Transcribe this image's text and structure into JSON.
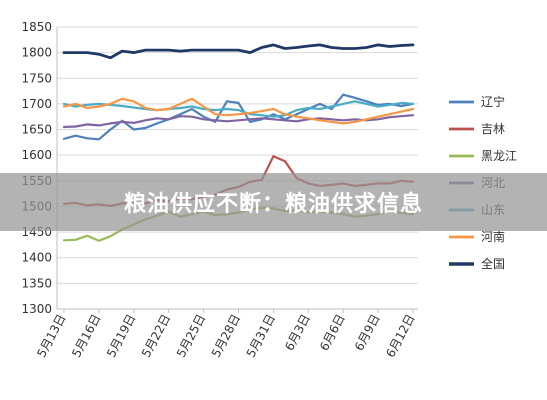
{
  "colors": {
    "background": "#ffffff",
    "gridline": "#d9d9d9",
    "banner": "#969696"
  },
  "banner": {
    "title": "粮油供应不断：粮油供求信息"
  },
  "chart_data": {
    "type": "line",
    "title": "",
    "xlabel": "",
    "ylabel": "",
    "ylim": [
      1300,
      1850
    ],
    "yticks": [
      1300,
      1350,
      1400,
      1450,
      1500,
      1550,
      1600,
      1650,
      1700,
      1750,
      1800,
      1850
    ],
    "grid": "horizontal",
    "legend_position": "right",
    "x_tick_labels": [
      "5月13日",
      "5月16日",
      "5月19日",
      "5月22日",
      "5月25日",
      "5月28日",
      "5月31日",
      "6月3日",
      "6月6日",
      "6月9日",
      "6月12日"
    ],
    "x_count": 31,
    "series": [
      {
        "name": "辽宁",
        "color": "#4f81bd",
        "width": 2.2,
        "values": [
          1632,
          1638,
          1633,
          1631,
          1650,
          1667,
          1650,
          1653,
          1662,
          1670,
          1680,
          1690,
          1675,
          1665,
          1705,
          1702,
          1665,
          1670,
          1680,
          1670,
          1680,
          1690,
          1700,
          1690,
          1718,
          1712,
          1705,
          1698,
          1700,
          1696,
          1700
        ]
      },
      {
        "name": "吉林",
        "color": "#c0504d",
        "width": 2.2,
        "values": [
          1505,
          1507,
          1502,
          1504,
          1501,
          1506,
          1507,
          1506,
          1513,
          1510,
          1516,
          1514,
          1519,
          1523,
          1533,
          1538,
          1548,
          1552,
          1598,
          1588,
          1555,
          1545,
          1540,
          1542,
          1545,
          1540,
          1542,
          1545,
          1545,
          1550,
          1548
        ]
      },
      {
        "name": "黑龙江",
        "color": "#9bbb59",
        "width": 2.2,
        "values": [
          1434,
          1435,
          1443,
          1433,
          1442,
          1455,
          1465,
          1475,
          1482,
          1490,
          1480,
          1485,
          1490,
          1483,
          1485,
          1488,
          1494,
          1497,
          1496,
          1491,
          1492,
          1489,
          1490,
          1488,
          1485,
          1480,
          1482,
          1485,
          1490,
          1488,
          1485
        ]
      },
      {
        "name": "河北",
        "color": "#8064a2",
        "width": 2.2,
        "values": [
          1655,
          1656,
          1660,
          1658,
          1662,
          1665,
          1663,
          1668,
          1672,
          1670,
          1676,
          1675,
          1670,
          1668,
          1666,
          1668,
          1670,
          1672,
          1670,
          1668,
          1666,
          1670,
          1672,
          1670,
          1668,
          1670,
          1668,
          1670,
          1674,
          1676,
          1678
        ]
      },
      {
        "name": "山东",
        "color": "#4bacc6",
        "width": 2.2,
        "values": [
          1700,
          1695,
          1698,
          1700,
          1698,
          1696,
          1693,
          1690,
          1688,
          1690,
          1692,
          1695,
          1690,
          1688,
          1690,
          1688,
          1680,
          1678,
          1675,
          1678,
          1688,
          1692,
          1690,
          1695,
          1700,
          1705,
          1700,
          1695,
          1698,
          1702,
          1700
        ]
      },
      {
        "name": "河南",
        "color": "#f79646",
        "width": 2.2,
        "values": [
          1695,
          1700,
          1692,
          1695,
          1700,
          1710,
          1705,
          1692,
          1688,
          1690,
          1700,
          1710,
          1695,
          1680,
          1678,
          1680,
          1682,
          1686,
          1690,
          1680,
          1675,
          1672,
          1668,
          1665,
          1662,
          1665,
          1670,
          1675,
          1680,
          1685,
          1690
        ]
      },
      {
        "name": "全国",
        "color": "#1f3864",
        "width": 2.8,
        "values": [
          1800,
          1800,
          1800,
          1797,
          1790,
          1803,
          1800,
          1805,
          1805,
          1805,
          1803,
          1805,
          1805,
          1805,
          1805,
          1805,
          1800,
          1810,
          1815,
          1808,
          1810,
          1813,
          1815,
          1810,
          1808,
          1808,
          1810,
          1815,
          1812,
          1814,
          1815
        ]
      }
    ]
  }
}
